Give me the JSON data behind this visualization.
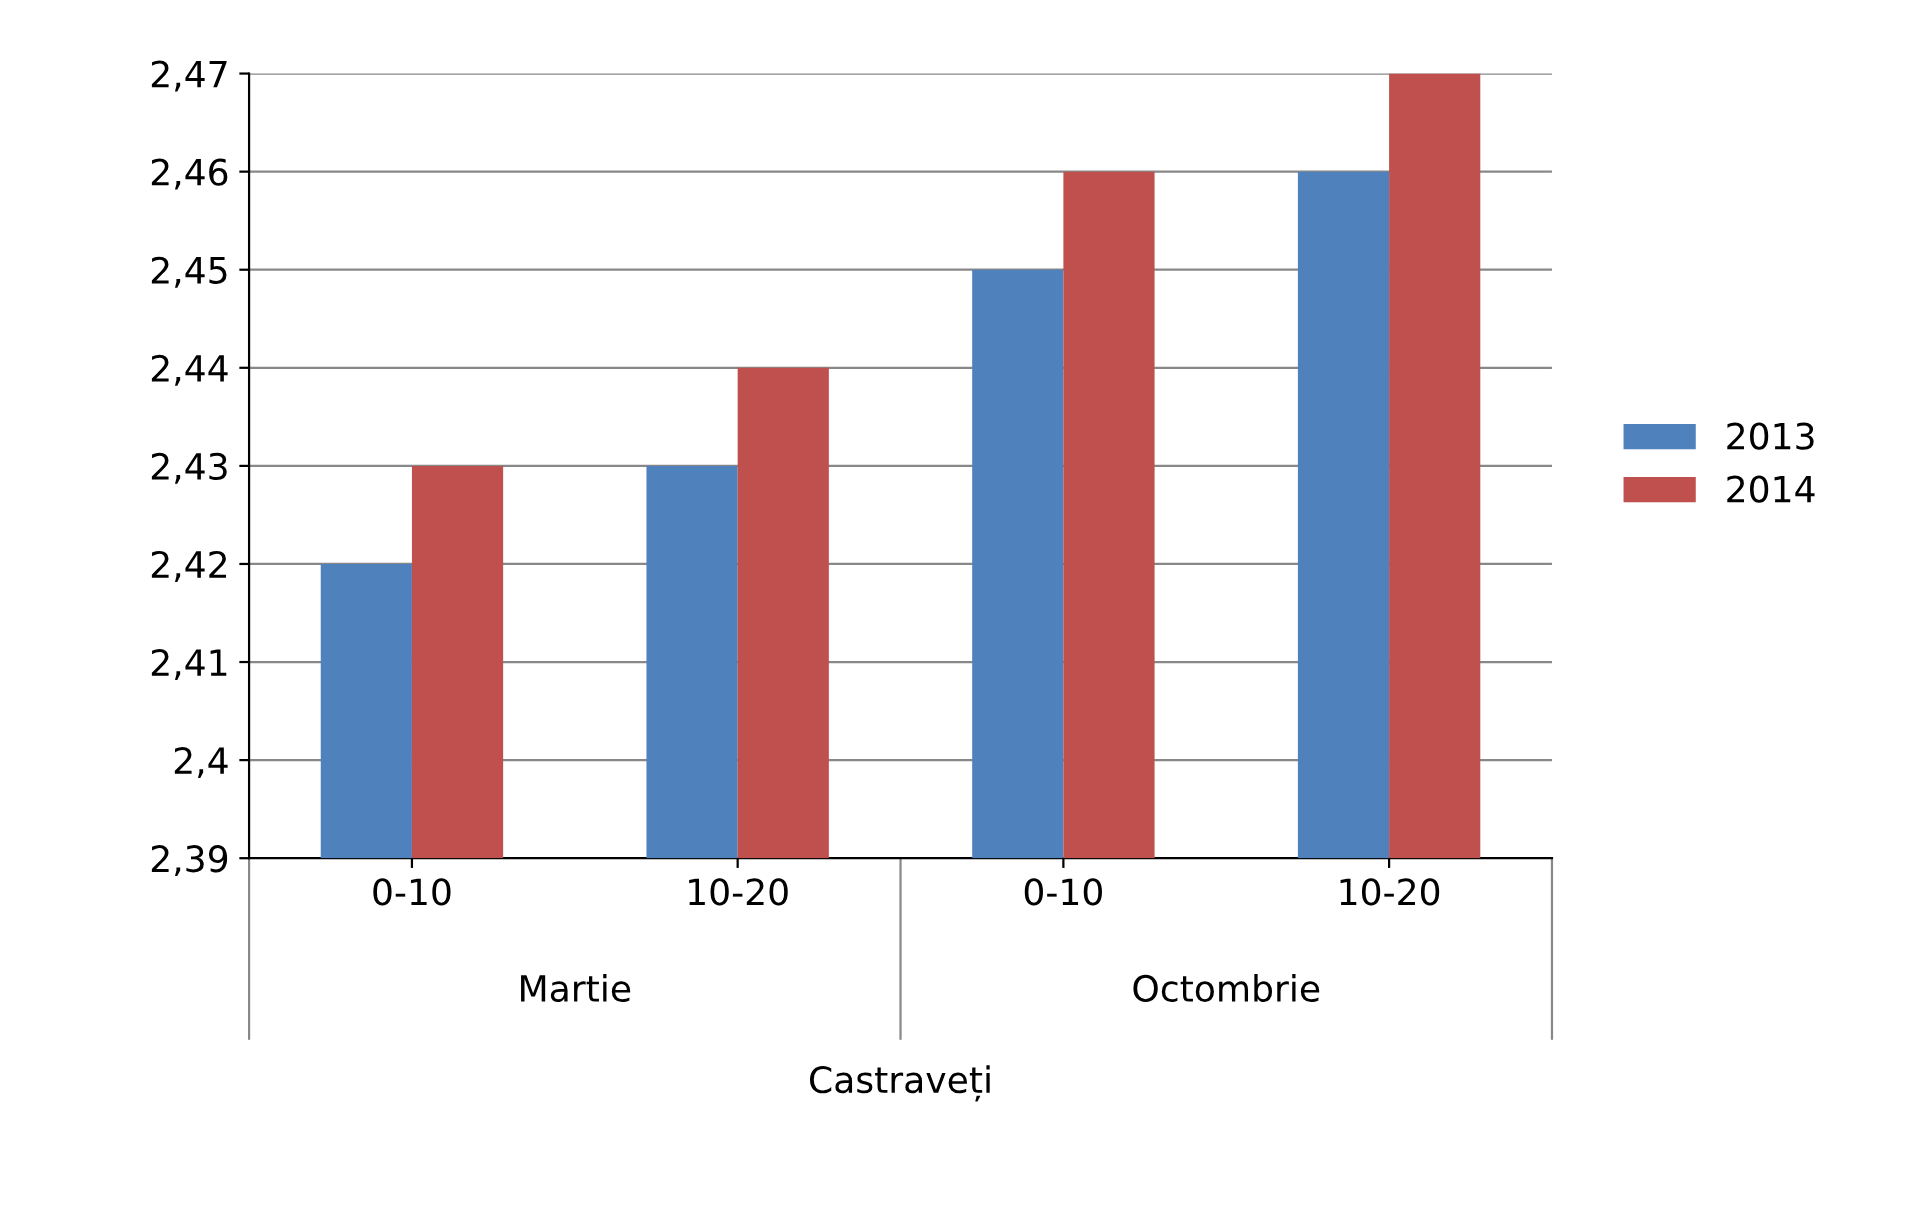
{
  "chart_data": {
    "type": "bar",
    "categories": [
      "0-10",
      "10-20",
      "0-10",
      "10-20"
    ],
    "series": [
      {
        "name": "2013",
        "color": "#4f81bd",
        "values": [
          2.42,
          2.43,
          2.45,
          2.46
        ]
      },
      {
        "name": "2014",
        "color": "#c0504d",
        "values": [
          2.43,
          2.44,
          2.46,
          2.47
        ]
      }
    ],
    "ylim": [
      2.39,
      2.47
    ],
    "yticks": [
      {
        "value": 2.39,
        "label": "2,39"
      },
      {
        "value": 2.4,
        "label": "2,4"
      },
      {
        "value": 2.41,
        "label": "2,41"
      },
      {
        "value": 2.42,
        "label": "2,42"
      },
      {
        "value": 2.43,
        "label": "2,43"
      },
      {
        "value": 2.44,
        "label": "2,44"
      },
      {
        "value": 2.45,
        "label": "2,45"
      },
      {
        "value": 2.46,
        "label": "2,46"
      },
      {
        "value": 2.47,
        "label": "2,47"
      }
    ],
    "grid": "y",
    "legend": "right",
    "annotations": [
      "Martie",
      "Octombrie"
    ],
    "xlabel": "Castraveți"
  }
}
